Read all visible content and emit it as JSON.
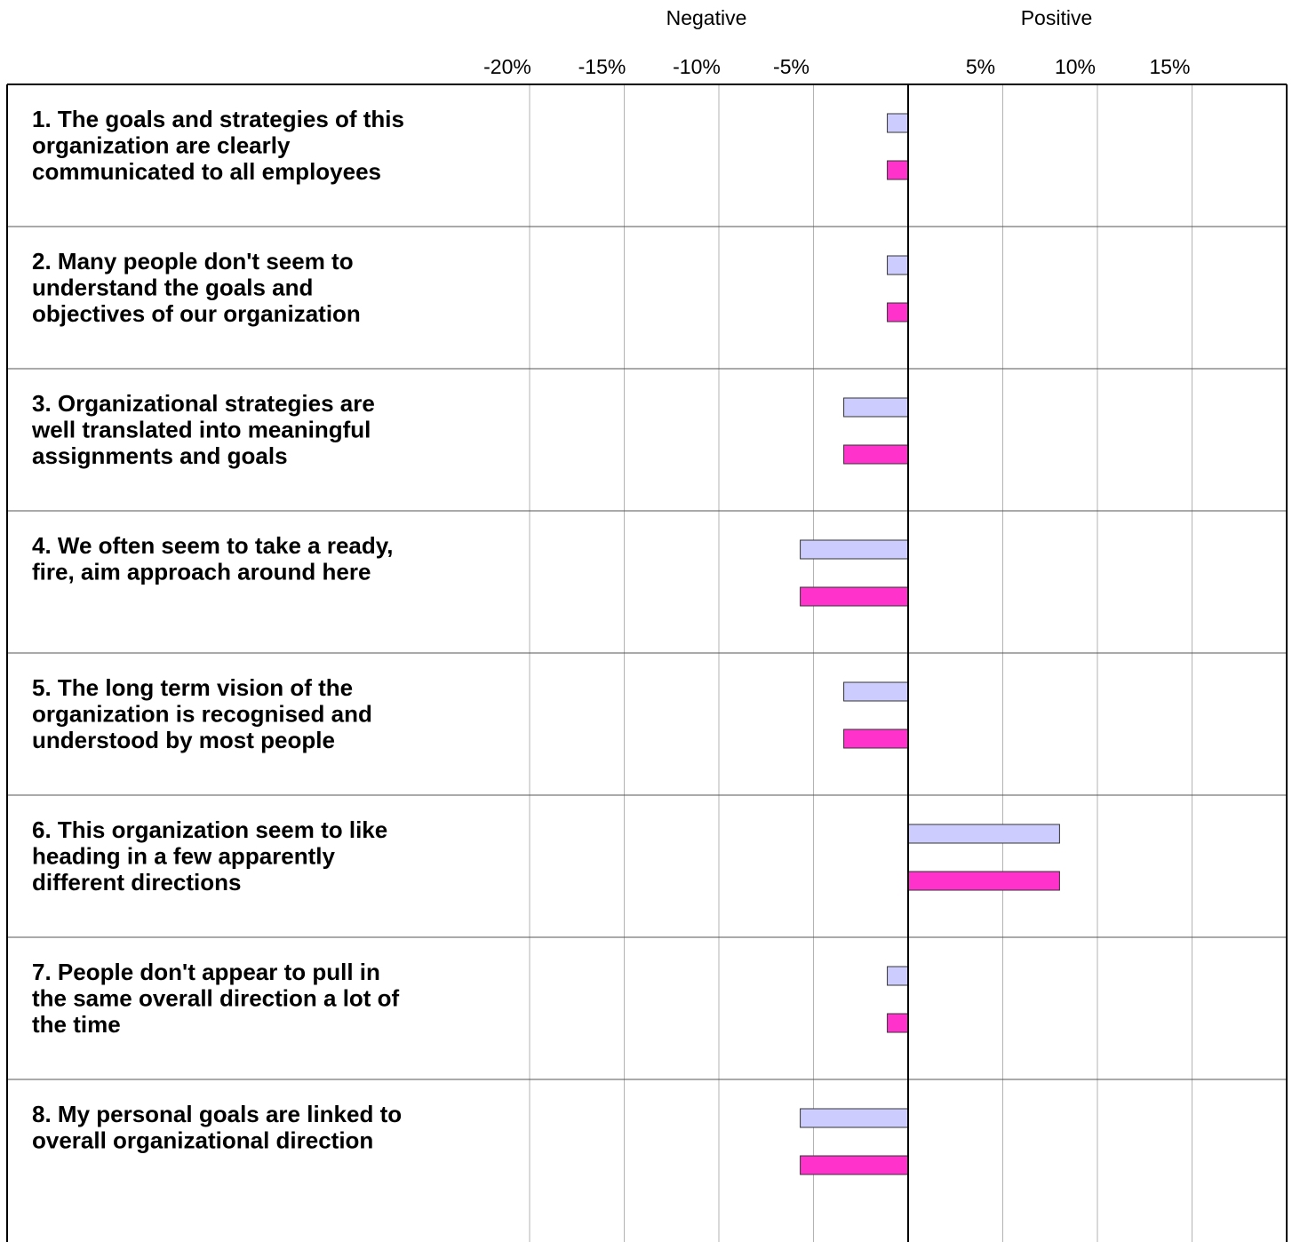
{
  "chart_data": {
    "type": "bar",
    "orientation": "horizontal",
    "headers": {
      "negative": "Negative",
      "positive": "Positive"
    },
    "ticks": [
      {
        "value": -20,
        "label": "-20%"
      },
      {
        "value": -15,
        "label": "-15%"
      },
      {
        "value": -10,
        "label": "-10%"
      },
      {
        "value": -5,
        "label": "-5%"
      },
      {
        "value": 5,
        "label": "5%"
      },
      {
        "value": 10,
        "label": "10%"
      },
      {
        "value": 15,
        "label": "15%"
      }
    ],
    "xlim": [
      -20,
      20
    ],
    "grid": true,
    "legend": "none",
    "series": [
      {
        "color": "#ccccff",
        "values": [
          -1.1,
          -1.1,
          -3.4,
          -5.7,
          -3.4,
          8.0,
          -1.1,
          -5.7
        ]
      },
      {
        "color": "#ff33cc",
        "values": [
          -1.1,
          -1.1,
          -3.4,
          -5.7,
          -3.4,
          8.0,
          -1.1,
          -5.7
        ]
      }
    ],
    "categories": [
      [
        "1. The goals and strategies of this",
        "organization are clearly",
        "communicated to all employees"
      ],
      [
        "2. Many people don't seem to",
        "understand the goals and",
        "objectives of our organization"
      ],
      [
        "3. Organizational strategies are",
        "well translated into meaningful",
        "assignments and goals"
      ],
      [
        "4. We often seem to take a ready,",
        "fire, aim approach around here"
      ],
      [
        "5. The long term vision of the",
        "organization is recognised and",
        "understood by most people"
      ],
      [
        "6. This organization seem to like",
        "heading in a few apparently",
        "different directions"
      ],
      [
        "7. People don't appear to pull in",
        "the same overall direction a lot of",
        "the time"
      ],
      [
        "8. My personal goals are linked to",
        "overall organizational direction"
      ]
    ]
  }
}
